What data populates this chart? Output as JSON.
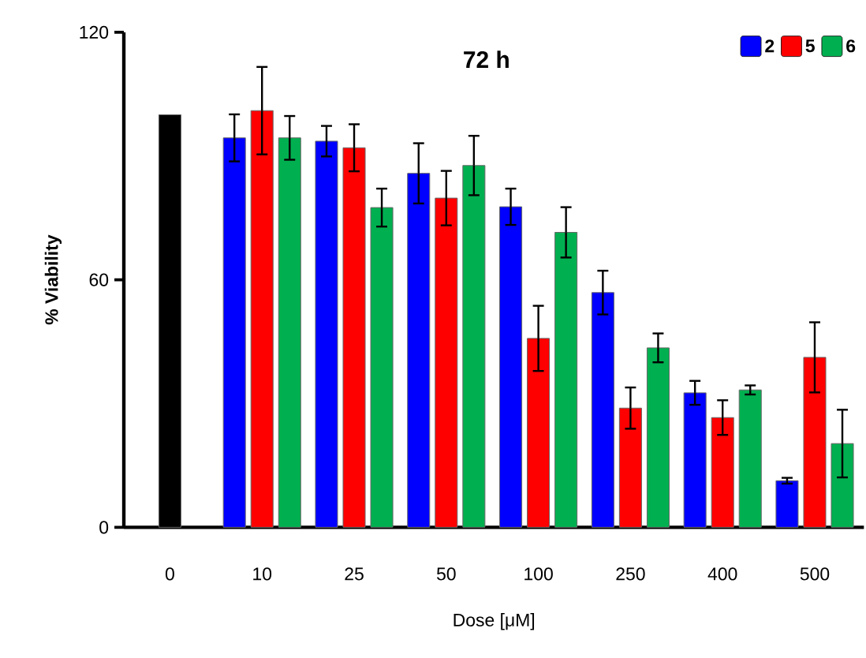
{
  "chart_data": {
    "type": "bar",
    "title": "72 h",
    "xlabel": "Dose [μM]",
    "ylabel": "% Viability",
    "categories": [
      "0",
      "10",
      "25",
      "50",
      "100",
      "250",
      "400",
      "500"
    ],
    "series": [
      {
        "color": "#000000",
        "values": [
          100,
          null,
          null,
          null,
          null,
          null,
          null,
          null
        ]
      },
      {
        "name": "2",
        "color": "#0000ff",
        "values": [
          null,
          94.4,
          93.6,
          85.8,
          77.7,
          56.9,
          32.6,
          11.3
        ],
        "errors": [
          null,
          5.7,
          3.7,
          7.3,
          4.4,
          5.3,
          2.9,
          0.7
        ]
      },
      {
        "name": "5",
        "color": "#ff0000",
        "values": [
          null,
          101.0,
          92.0,
          79.8,
          45.8,
          28.9,
          26.6,
          41.2
        ],
        "errors": [
          null,
          10.6,
          5.7,
          6.6,
          7.9,
          5.0,
          4.2,
          8.5
        ]
      },
      {
        "name": "6",
        "color": "#00b050",
        "values": [
          null,
          94.4,
          77.5,
          87.7,
          71.5,
          43.5,
          33.3,
          20.3
        ],
        "errors": [
          null,
          5.3,
          4.6,
          7.2,
          6.1,
          3.5,
          1.1,
          8.2
        ]
      }
    ],
    "ylim": [
      0,
      120
    ],
    "yticks": [
      0,
      60,
      120
    ],
    "legend": "top right",
    "grid": false
  }
}
